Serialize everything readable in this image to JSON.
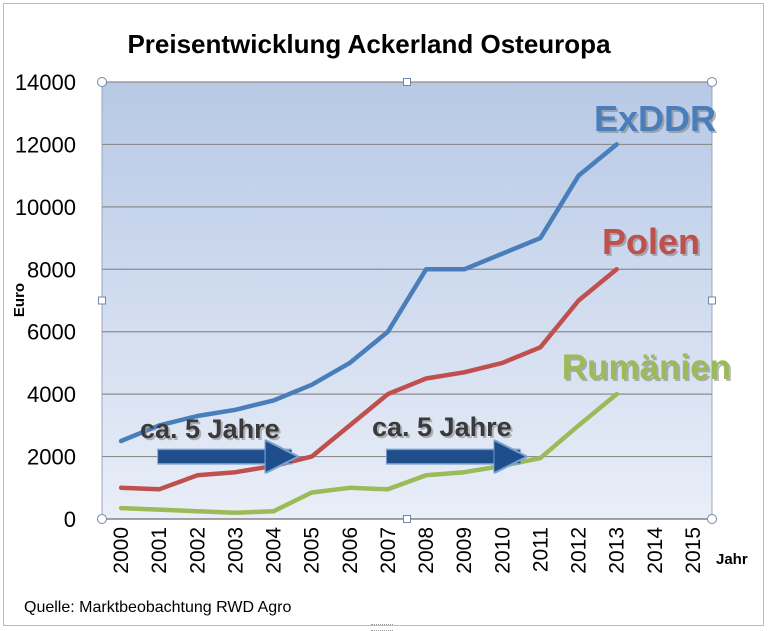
{
  "chart_data": {
    "type": "line",
    "title": "Preisentwicklung Ackerland Osteuropa",
    "xlabel": "Jahr",
    "ylabel": "Euro",
    "ylim": [
      0,
      14000
    ],
    "yticks": [
      0,
      2000,
      4000,
      6000,
      8000,
      10000,
      12000,
      14000
    ],
    "categories": [
      "2000",
      "2001",
      "2002",
      "2003",
      "2004",
      "2005",
      "2006",
      "2007",
      "2008",
      "2009",
      "2010",
      "2011",
      "2012",
      "2013",
      "2014",
      "2015"
    ],
    "grid": true,
    "legend": "none",
    "series": [
      {
        "name": "ExDDR",
        "color": "#4a7ebb",
        "values": [
          2500,
          3000,
          3300,
          3500,
          3800,
          4300,
          5000,
          6000,
          8000,
          8000,
          8500,
          9000,
          11000,
          12000,
          null,
          null
        ]
      },
      {
        "name": "Polen",
        "color": "#c0504d",
        "values": [
          1000,
          950,
          1400,
          1500,
          1700,
          2000,
          3000,
          4000,
          4500,
          4700,
          5000,
          5500,
          7000,
          8000,
          null,
          null
        ]
      },
      {
        "name": "Rumänien",
        "color": "#9bbb59",
        "values": [
          350,
          300,
          250,
          200,
          250,
          850,
          1000,
          950,
          1400,
          1500,
          1700,
          1950,
          3000,
          4000,
          null,
          null
        ]
      }
    ],
    "annotations": [
      {
        "text": "ca. 5 Jahre",
        "arrow_from": "2001",
        "arrow_to": "2005",
        "y": 2000,
        "color": "#1f4e8c"
      },
      {
        "text": "ca. 5 Jahre",
        "arrow_from": "2007",
        "arrow_to": "2011",
        "y": 2000,
        "color": "#1f4e8c"
      }
    ],
    "source": "Quelle: Marktbeobachtung RWD Agro"
  }
}
